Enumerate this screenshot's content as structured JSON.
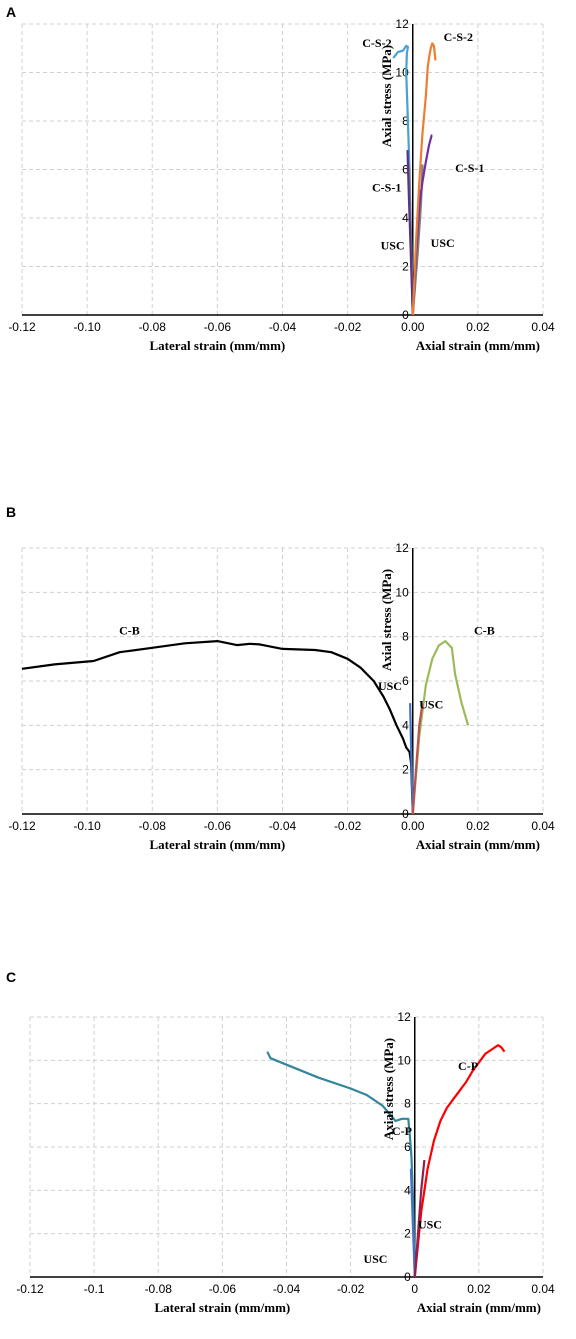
{
  "chart_data": [
    {
      "panel": "A",
      "type": "line",
      "xlim": [
        -0.12,
        0.04
      ],
      "ylim": [
        0,
        12
      ],
      "x_ticks": [
        "-0.12",
        "-0.10",
        "-0.08",
        "-0.06",
        "-0.04",
        "-0.02",
        "0.00",
        "0.02",
        "0.04"
      ],
      "y_ticks": [
        "0",
        "2",
        "4",
        "6",
        "8",
        "10",
        "12"
      ],
      "xlabel_lateral": "Lateral strain (mm/mm)",
      "xlabel_axial": "Axial strain (mm/mm)",
      "ylabel": "Axial stress (MPa)",
      "grid": true,
      "series": [
        {
          "color": "#2e75b6",
          "x": [
            0,
            -0.0003,
            -0.0006,
            -0.0009,
            -0.0011
          ],
          "y": [
            0,
            1.5,
            3,
            4.5,
            5.6
          ]
        },
        {
          "color": "#4aa0d5",
          "x": [
            0,
            -0.0005,
            -0.001,
            -0.0016,
            -0.002,
            -0.0018,
            -0.0015,
            -0.002,
            -0.003,
            -0.0045,
            -0.006
          ],
          "y": [
            0,
            3,
            6,
            8.5,
            10,
            10.8,
            11.05,
            11.1,
            10.9,
            10.85,
            10.6
          ]
        },
        {
          "color": "#7f7f7f",
          "x": [
            0,
            -0.0004,
            -0.0008,
            -0.0012
          ],
          "y": [
            0,
            2.5,
            4.5,
            6.2
          ]
        },
        {
          "color": "#5a3286",
          "x": [
            0,
            -0.0006,
            -0.0012,
            -0.0016
          ],
          "y": [
            0,
            2.5,
            5,
            6.8
          ]
        },
        {
          "color": "#c0504d",
          "x": [
            0,
            0.0008,
            0.0015,
            0.002
          ],
          "y": [
            0,
            2,
            4,
            5.2
          ]
        },
        {
          "color": "#7f7f7f",
          "x": [
            0,
            0.0015,
            0.0025,
            0.003
          ],
          "y": [
            0,
            2.5,
            4.5,
            6.2
          ]
        },
        {
          "color": "#7030a0",
          "x": [
            0,
            0.001,
            0.002,
            0.003,
            0.004,
            0.005,
            0.0058,
            0.006
          ],
          "y": [
            0,
            2.5,
            4.5,
            5.5,
            6.3,
            7,
            7.4,
            7.4
          ]
        },
        {
          "color": "#ed7d31",
          "x": [
            0,
            0.001,
            0.002,
            0.003,
            0.004,
            0.0046,
            0.005,
            0.0055,
            0.006,
            0.0065,
            0.007
          ],
          "y": [
            0,
            3,
            5.5,
            7.5,
            9,
            10.2,
            10.6,
            11,
            11.2,
            11.1,
            10.5
          ]
        }
      ],
      "labels": [
        {
          "text": "C-S-2",
          "x": -0.0065,
          "y": 11.05,
          "anchor": "end"
        },
        {
          "text": "C-S-2",
          "x": 0.0095,
          "y": 11.3,
          "anchor": "start"
        },
        {
          "text": "C-S-1",
          "x": 0.013,
          "y": 5.9,
          "anchor": "start"
        },
        {
          "text": "C-S-1",
          "x": -0.0035,
          "y": 5.1,
          "anchor": "end"
        },
        {
          "text": "USC",
          "x": -0.0025,
          "y": 2.7,
          "anchor": "end"
        },
        {
          "text": "USC",
          "x": 0.0055,
          "y": 2.8,
          "anchor": "start"
        }
      ]
    },
    {
      "panel": "B",
      "type": "line",
      "xlim": [
        -0.12,
        0.04
      ],
      "ylim": [
        0,
        12
      ],
      "x_ticks": [
        "-0.12",
        "-0.10",
        "-0.08",
        "-0.06",
        "-0.04",
        "-0.02",
        "0.00",
        "0.02",
        "0.04"
      ],
      "y_ticks": [
        "0",
        "2",
        "4",
        "6",
        "8",
        "10",
        "12"
      ],
      "xlabel_lateral": "Lateral strain (mm/mm)",
      "xlabel_axial": "Axial strain (mm/mm)",
      "ylabel": "Axial stress (MPa)",
      "grid": true,
      "series": [
        {
          "color": "#000000",
          "x": [
            -0.12,
            -0.11,
            -0.098,
            -0.09,
            -0.08,
            -0.07,
            -0.06,
            -0.054,
            -0.05,
            -0.047,
            -0.04,
            -0.03,
            -0.025,
            -0.02,
            -0.016,
            -0.012,
            -0.009,
            -0.007,
            -0.005,
            -0.003,
            -0.002,
            -0.001,
            -0.0005,
            0
          ],
          "y": [
            6.55,
            6.75,
            6.9,
            7.3,
            7.5,
            7.7,
            7.8,
            7.62,
            7.68,
            7.65,
            7.45,
            7.4,
            7.3,
            7.0,
            6.6,
            6.0,
            5.3,
            4.7,
            4.0,
            3.4,
            3.0,
            2.8,
            2.3,
            0
          ]
        },
        {
          "color": "#4472c4",
          "x": [
            0,
            -0.0004,
            -0.0008
          ],
          "y": [
            0,
            2.5,
            5
          ]
        },
        {
          "color": "#9bbb59",
          "x": [
            0,
            0.002,
            0.004,
            0.006,
            0.008,
            0.01,
            0.012,
            0.013,
            0.015,
            0.017
          ],
          "y": [
            0,
            3.5,
            5.8,
            7.0,
            7.6,
            7.8,
            7.5,
            6.3,
            5.0,
            4.0
          ]
        },
        {
          "color": "#c0504d",
          "x": [
            0,
            0.001,
            0.002,
            0.003
          ],
          "y": [
            0,
            2,
            4,
            5
          ]
        }
      ],
      "labels": [
        {
          "text": "C-B",
          "x": -0.087,
          "y": 8.1,
          "anchor": "middle"
        },
        {
          "text": "C-B",
          "x": 0.022,
          "y": 8.1,
          "anchor": "middle"
        },
        {
          "text": "USC",
          "x": -0.007,
          "y": 5.6,
          "anchor": "middle"
        },
        {
          "text": "USC",
          "x": 0.002,
          "y": 4.75,
          "anchor": "start"
        }
      ]
    },
    {
      "panel": "C",
      "type": "line",
      "xlim": [
        -0.12,
        0.04
      ],
      "ylim": [
        0,
        12
      ],
      "x_ticks": [
        "-0.12",
        "-0.1",
        "-0.08",
        "-0.06",
        "-0.04",
        "-0.02",
        "0",
        "0.02",
        "0.04"
      ],
      "y_ticks": [
        "0",
        "2",
        "4",
        "6",
        "8",
        "10",
        "12"
      ],
      "xlabel_lateral": "Lateral strain (mm/mm)",
      "xlabel_axial": "Axial strain (mm/mm)",
      "ylabel": "Axial stress (MPa)",
      "grid": true,
      "series": [
        {
          "color": "#31859c",
          "x": [
            -0.046,
            -0.045,
            -0.04,
            -0.03,
            -0.02,
            -0.015,
            -0.01,
            -0.006,
            -0.004,
            -0.002,
            -0.0015,
            -0.001,
            -0.0005,
            0
          ],
          "y": [
            10.4,
            10.1,
            9.8,
            9.2,
            8.7,
            8.4,
            7.9,
            7.2,
            7.3,
            7.3,
            6.5,
            5.5,
            3.5,
            0
          ]
        },
        {
          "color": "#4472c4",
          "x": [
            0,
            -0.0006,
            -0.0012
          ],
          "y": [
            0,
            2.5,
            5
          ]
        },
        {
          "color": "#ff0000",
          "x": [
            0,
            0.002,
            0.004,
            0.006,
            0.008,
            0.01,
            0.012,
            0.014,
            0.016,
            0.018,
            0.02,
            0.022,
            0.024,
            0.026,
            0.027,
            0.028
          ],
          "y": [
            0,
            3,
            5,
            6.3,
            7.2,
            7.8,
            8.2,
            8.6,
            9.0,
            9.5,
            9.9,
            10.3,
            10.5,
            10.7,
            10.6,
            10.4
          ]
        },
        {
          "color": "#8b2252",
          "x": [
            0,
            0.001,
            0.002,
            0.003
          ],
          "y": [
            0,
            2,
            4,
            5.4
          ]
        }
      ],
      "labels": [
        {
          "text": "C-P",
          "x": -0.004,
          "y": 6.55,
          "anchor": "middle"
        },
        {
          "text": "C-P",
          "x": 0.0135,
          "y": 9.55,
          "anchor": "start"
        },
        {
          "text": "USC",
          "x": 0.001,
          "y": 2.25,
          "anchor": "start"
        },
        {
          "text": "USC",
          "x": -0.0085,
          "y": 0.65,
          "anchor": "end"
        }
      ]
    }
  ],
  "panel_letters": [
    "A",
    "B",
    "C"
  ]
}
